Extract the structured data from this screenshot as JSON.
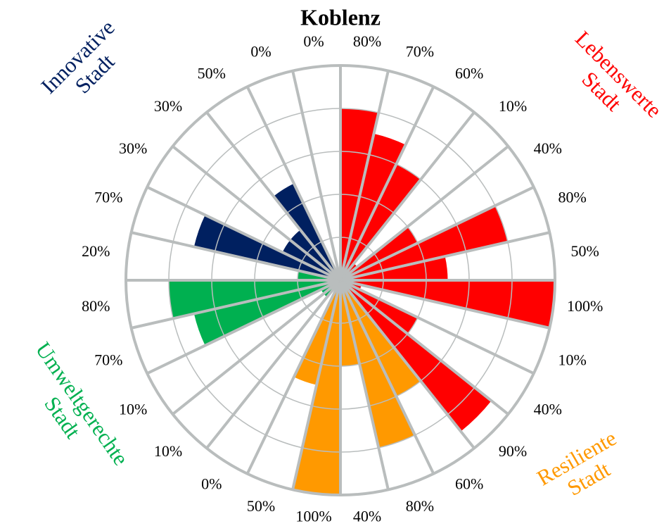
{
  "chart_data": {
    "type": "polar_bar",
    "title": "Koblenz",
    "rlim": [
      0,
      100
    ],
    "rticks": [
      20,
      40,
      60,
      80,
      100
    ],
    "grid": true,
    "series": [
      {
        "name": "Lebenswerte Stadt",
        "color": "#ff0000",
        "values": [
          80,
          70,
          60,
          10,
          40,
          80,
          50,
          100,
          10,
          40,
          90
        ],
        "value_labels": [
          "80%",
          "70%",
          "60%",
          "10%",
          "40%",
          "80%",
          "50%",
          "100%",
          "10%",
          "40%",
          "90%"
        ]
      },
      {
        "name": "Resiliente Stadt",
        "color": "#ff9900",
        "values": [
          60,
          80,
          40,
          100,
          50
        ],
        "value_labels": [
          "60%",
          "80%",
          "40%",
          "100%",
          "50%"
        ]
      },
      {
        "name": "Umweltgerechte Stadt",
        "color": "#00b050",
        "values": [
          0,
          10,
          10,
          70,
          80,
          20
        ],
        "value_labels": [
          "0%",
          "10%",
          "10%",
          "70%",
          "80%",
          "20%"
        ]
      },
      {
        "name": "Innovative Stadt",
        "color": "#002060",
        "values": [
          70,
          30,
          30,
          50,
          0,
          0
        ],
        "value_labels": [
          "70%",
          "30%",
          "30%",
          "50%",
          "0%",
          "0%"
        ]
      }
    ]
  }
}
